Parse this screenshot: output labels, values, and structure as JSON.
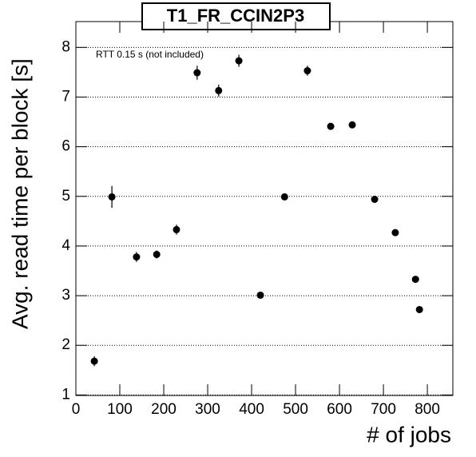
{
  "chart_data": {
    "type": "scatter",
    "title": "T1_FR_CCIN2P3",
    "annotation": "RTT 0.15 s (not included)",
    "x_label": "# of jobs",
    "y_label": "Avg. read time per block [s]",
    "series": [
      {
        "color": "#000000",
        "x": [
          42,
          82,
          138,
          184,
          229,
          276,
          325,
          371,
          420,
          475,
          527,
          580,
          629,
          680,
          727,
          773,
          782
        ],
        "values": [
          1.68,
          4.99,
          3.78,
          3.83,
          4.33,
          7.49,
          7.13,
          7.73,
          3.01,
          4.99,
          7.53,
          6.41,
          6.44,
          4.94,
          4.27,
          3.33,
          2.72
        ],
        "errors": [
          0.1,
          0.22,
          0.1,
          0.08,
          0.1,
          0.14,
          0.12,
          0.12,
          0.04,
          0.05,
          0.1,
          0.06,
          0.06,
          0.05,
          0.04,
          0.04,
          0.04
        ]
      }
    ],
    "xlim": [
      0,
      858
    ],
    "xticks": [
      0,
      100,
      200,
      300,
      400,
      500,
      600,
      700,
      800
    ],
    "ylim": [
      0.99,
      8.52
    ],
    "yticks": [
      1,
      2,
      3,
      4,
      5,
      6,
      7,
      8
    ],
    "grid": "y"
  }
}
